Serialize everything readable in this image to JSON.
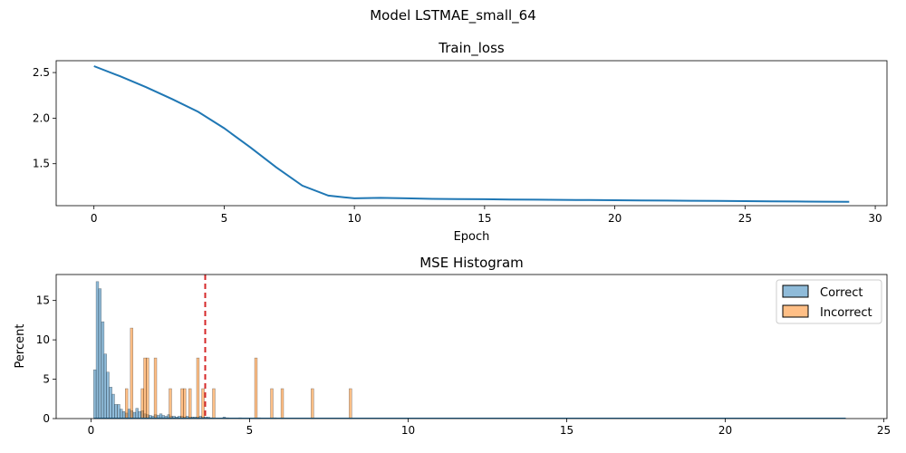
{
  "suptitle": "Model LSTMAE_small_64",
  "colors": {
    "loss_line": "#1f77b4",
    "correct": "#1f77b4",
    "incorrect": "#ff7f0e",
    "threshold": "#d62728"
  },
  "chart_data": [
    {
      "type": "line",
      "title": "Train_loss",
      "xlabel": "Epoch",
      "ylabel": "",
      "xlim": [
        -1.45,
        30.45
      ],
      "ylim": [
        1.04,
        2.63
      ],
      "xticks": [
        0,
        5,
        10,
        15,
        20,
        25,
        30
      ],
      "yticks": [
        1.5,
        2.0,
        2.5
      ],
      "ytick_labels": [
        "1.5",
        "2.0",
        "2.5"
      ],
      "grid": false,
      "series": [
        {
          "x": [
            0,
            1,
            2,
            3,
            4,
            5,
            6,
            7,
            8,
            9,
            10,
            11,
            12,
            13,
            14,
            15,
            16,
            17,
            18,
            19,
            20,
            21,
            22,
            23,
            24,
            25,
            26,
            27,
            28,
            29
          ],
          "y": [
            2.57,
            2.46,
            2.34,
            2.21,
            2.07,
            1.89,
            1.68,
            1.46,
            1.26,
            1.15,
            1.12,
            1.125,
            1.12,
            1.115,
            1.113,
            1.111,
            1.108,
            1.106,
            1.104,
            1.102,
            1.1,
            1.098,
            1.096,
            1.094,
            1.092,
            1.09,
            1.088,
            1.086,
            1.084,
            1.082
          ]
        }
      ]
    },
    {
      "type": "bar",
      "title": "MSE Histogram",
      "xlabel": "",
      "ylabel": "Percent",
      "xlim": [
        -1.1,
        25.1
      ],
      "ylim": [
        0,
        18.3
      ],
      "xticks": [
        0,
        5,
        10,
        15,
        20,
        25
      ],
      "yticks": [
        0,
        5,
        10,
        15
      ],
      "grid": false,
      "legend": "top-right",
      "bin_width": 0.083,
      "threshold": 3.6,
      "series": [
        {
          "name": "Correct",
          "x": [
            0.12,
            0.2,
            0.28,
            0.37,
            0.45,
            0.53,
            0.62,
            0.7,
            0.78,
            0.87,
            0.95,
            1.03,
            1.12,
            1.2,
            1.28,
            1.37,
            1.45,
            1.53,
            1.62,
            1.7,
            1.78,
            1.87,
            1.95,
            2.03,
            2.12,
            2.2,
            2.28,
            2.37,
            2.45,
            2.53,
            2.62,
            2.7,
            2.78,
            2.87,
            2.95,
            3.03,
            3.12,
            3.2,
            3.28,
            3.37,
            3.45,
            3.53,
            3.62,
            3.7,
            3.78,
            4.2,
            4.3,
            4.7,
            5.3,
            5.8
          ],
          "values": [
            6.2,
            17.4,
            16.5,
            12.3,
            8.2,
            5.9,
            4,
            3.1,
            1.8,
            1.8,
            1.2,
            0.9,
            0.7,
            1.2,
            1,
            0.8,
            1.3,
            0.9,
            1,
            0.6,
            0.5,
            0.4,
            0.3,
            0.5,
            0.4,
            0.6,
            0.4,
            0.3,
            0.5,
            0.3,
            0.3,
            0.2,
            0.3,
            0.3,
            0.2,
            0.3,
            0.2,
            0.2,
            0.2,
            0.2,
            0.3,
            0.2,
            0.2,
            0.2,
            0.1,
            0.2,
            0.1,
            0.1,
            0.1,
            0.1
          ]
        },
        {
          "name": "Incorrect",
          "x": [
            1.12,
            1.28,
            1.62,
            1.7,
            1.78,
            2.03,
            2.5,
            2.87,
            2.95,
            3.12,
            3.37,
            3.53,
            3.87,
            5.2,
            5.7,
            6.03,
            6.98,
            8.18
          ],
          "values": [
            3.8,
            11.5,
            3.8,
            7.7,
            7.7,
            7.7,
            3.8,
            3.8,
            3.8,
            3.8,
            7.7,
            3.8,
            3.8,
            7.7,
            3.8,
            3.8,
            3.8,
            3.8
          ]
        }
      ]
    }
  ]
}
